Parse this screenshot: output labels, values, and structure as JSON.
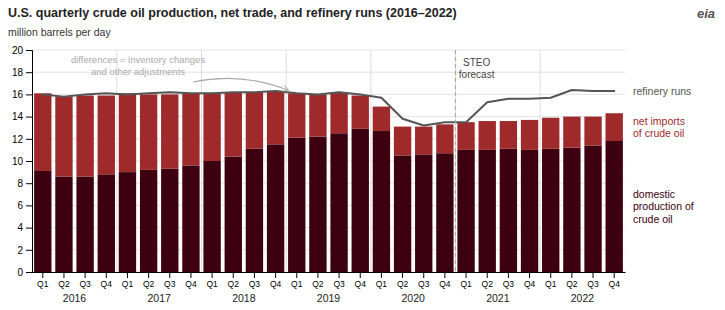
{
  "chart_data": {
    "type": "bar",
    "stacked": true,
    "title": "U.S. quarterly crude oil production, net trade, and refinery runs (2016–2022)",
    "subtitle": "million barrels per day",
    "logo": "eia",
    "annotation": {
      "text": "differences = inventory changes\nand other adjustments",
      "color": "#aaaaaa"
    },
    "forecast_label": "STEO\nforecast",
    "forecast_start_index": 20,
    "categories": [
      "Q1",
      "Q2",
      "Q3",
      "Q4",
      "Q1",
      "Q2",
      "Q3",
      "Q4",
      "Q1",
      "Q2",
      "Q3",
      "Q4",
      "Q1",
      "Q2",
      "Q3",
      "Q4",
      "Q1",
      "Q2",
      "Q3",
      "Q4",
      "Q1",
      "Q2",
      "Q3",
      "Q4",
      "Q1",
      "Q2",
      "Q3",
      "Q4"
    ],
    "years": [
      "2016",
      "2017",
      "2018",
      "2019",
      "2020",
      "2021",
      "2022"
    ],
    "series": [
      {
        "name": "domestic\nproduction of\ncrude oil",
        "type": "bar",
        "color": "#3d0010",
        "values": [
          9.1,
          8.6,
          8.6,
          8.8,
          9.0,
          9.2,
          9.3,
          9.6,
          10.0,
          10.4,
          11.1,
          11.5,
          12.1,
          12.2,
          12.5,
          12.9,
          12.7,
          10.5,
          10.6,
          10.7,
          11.0,
          11.0,
          11.1,
          11.0,
          11.1,
          11.2,
          11.4,
          11.8
        ]
      },
      {
        "name": "net imports\nof crude oil",
        "type": "bar",
        "color": "#9e2a2b",
        "values": [
          7.0,
          7.2,
          7.3,
          7.1,
          7.1,
          6.8,
          6.7,
          6.5,
          6.1,
          5.8,
          5.1,
          4.8,
          4.0,
          3.8,
          3.7,
          3.0,
          2.2,
          2.6,
          2.5,
          2.6,
          2.5,
          2.6,
          2.5,
          2.7,
          2.8,
          2.8,
          2.6,
          2.5
        ]
      },
      {
        "name": "refinery runs",
        "type": "line",
        "color": "#555555",
        "values": [
          16.0,
          15.8,
          16.0,
          16.1,
          16.0,
          16.1,
          16.2,
          16.1,
          16.1,
          16.2,
          16.2,
          16.3,
          16.1,
          16.0,
          16.2,
          16.0,
          15.7,
          13.8,
          13.2,
          13.5,
          13.5,
          15.3,
          15.6,
          15.6,
          15.7,
          16.4,
          16.3,
          16.3
        ]
      }
    ],
    "ylim": [
      0,
      20
    ],
    "yticks": [
      0,
      2,
      4,
      6,
      8,
      10,
      12,
      14,
      16,
      18,
      20
    ],
    "grid": true,
    "legend": "right"
  }
}
